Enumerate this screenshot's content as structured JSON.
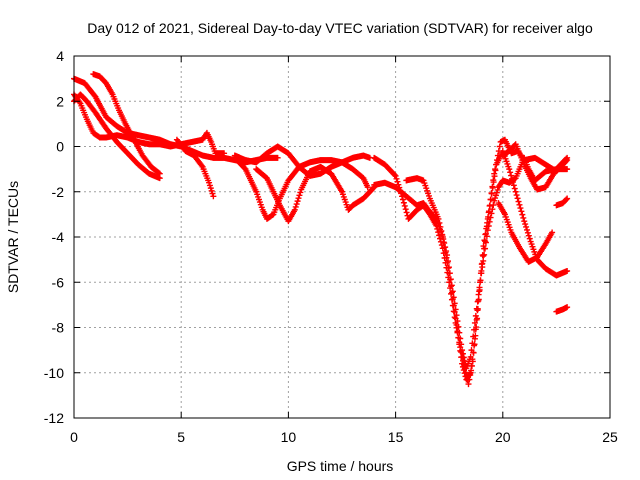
{
  "chart_data": {
    "type": "scatter",
    "title": "Day 012 of 2021, Sidereal Day-to-day VTEC variation (SDTVAR) for receiver algo",
    "xlabel": "GPS time / hours",
    "ylabel": "SDTVAR / TECUs",
    "xlim": [
      0,
      25
    ],
    "ylim": [
      -12,
      4
    ],
    "xticks": [
      0,
      5,
      10,
      15,
      20,
      25
    ],
    "yticks": [
      4,
      2,
      0,
      -2,
      -4,
      -6,
      -8,
      -10,
      -12
    ],
    "grid": true,
    "marker": "+",
    "color": "#ff0000",
    "series": [
      {
        "name": "track-1",
        "points": [
          [
            0.0,
            3.0
          ],
          [
            0.5,
            2.8
          ],
          [
            1.0,
            2.2
          ],
          [
            1.5,
            1.3
          ],
          [
            2.0,
            0.9
          ],
          [
            2.5,
            0.6
          ],
          [
            3.0,
            0.5
          ],
          [
            3.5,
            0.4
          ],
          [
            4.0,
            0.3
          ],
          [
            4.5,
            0.1
          ],
          [
            5.0,
            0.0
          ],
          [
            5.5,
            -0.2
          ],
          [
            6.0,
            -0.4
          ],
          [
            6.5,
            -0.5
          ],
          [
            7.0,
            -0.5
          ],
          [
            7.5,
            -0.6
          ],
          [
            8.0,
            -0.7
          ],
          [
            8.5,
            -0.6
          ],
          [
            9.0,
            -0.5
          ],
          [
            9.5,
            -0.5
          ]
        ]
      },
      {
        "name": "track-2",
        "points": [
          [
            0.0,
            2.3
          ],
          [
            0.3,
            1.9
          ],
          [
            0.6,
            1.2
          ],
          [
            0.9,
            0.6
          ],
          [
            1.2,
            0.4
          ],
          [
            1.5,
            0.4
          ],
          [
            2.0,
            0.5
          ],
          [
            2.5,
            0.4
          ],
          [
            3.0,
            0.2
          ],
          [
            3.5,
            0.1
          ],
          [
            4.0,
            0.1
          ],
          [
            4.5,
            0.0
          ],
          [
            5.0,
            0.1
          ],
          [
            5.5,
            0.2
          ],
          [
            6.0,
            0.3
          ],
          [
            6.2,
            0.6
          ],
          [
            6.4,
            0.2
          ],
          [
            6.6,
            -0.3
          ],
          [
            7.0,
            -0.3
          ]
        ]
      },
      {
        "name": "track-3",
        "points": [
          [
            0.0,
            2.0
          ],
          [
            0.3,
            2.3
          ],
          [
            0.6,
            2.0
          ],
          [
            1.0,
            1.5
          ],
          [
            1.5,
            0.8
          ],
          [
            2.0,
            0.2
          ],
          [
            2.5,
            -0.3
          ],
          [
            3.0,
            -0.8
          ],
          [
            3.5,
            -1.2
          ],
          [
            4.0,
            -1.4
          ]
        ]
      },
      {
        "name": "track-4",
        "points": [
          [
            0.9,
            3.2
          ],
          [
            1.2,
            3.1
          ],
          [
            1.5,
            2.8
          ],
          [
            1.8,
            2.3
          ],
          [
            2.1,
            1.6
          ],
          [
            2.4,
            1.0
          ],
          [
            2.8,
            0.3
          ],
          [
            3.2,
            -0.4
          ],
          [
            3.6,
            -0.9
          ],
          [
            4.0,
            -1.2
          ]
        ]
      },
      {
        "name": "track-5",
        "points": [
          [
            4.8,
            0.3
          ],
          [
            5.2,
            -0.2
          ],
          [
            5.6,
            -0.4
          ],
          [
            6.0,
            -0.9
          ],
          [
            6.3,
            -1.6
          ],
          [
            6.5,
            -2.2
          ]
        ]
      },
      {
        "name": "track-6",
        "points": [
          [
            7.5,
            -0.4
          ],
          [
            8.0,
            -0.6
          ],
          [
            8.5,
            -0.7
          ],
          [
            9.0,
            -0.3
          ],
          [
            9.5,
            0.0
          ],
          [
            10.0,
            -0.3
          ],
          [
            10.5,
            -0.9
          ],
          [
            11.0,
            -1.3
          ],
          [
            11.5,
            -1.2
          ],
          [
            12.0,
            -0.9
          ],
          [
            12.5,
            -0.7
          ],
          [
            13.0,
            -0.5
          ],
          [
            13.5,
            -0.4
          ],
          [
            13.8,
            -0.5
          ]
        ]
      },
      {
        "name": "track-7",
        "points": [
          [
            7.5,
            -0.5
          ],
          [
            8.0,
            -1.0
          ],
          [
            8.5,
            -2.0
          ],
          [
            8.8,
            -2.8
          ],
          [
            9.0,
            -3.2
          ],
          [
            9.3,
            -3.0
          ],
          [
            9.6,
            -2.3
          ],
          [
            10.0,
            -1.5
          ],
          [
            10.5,
            -0.9
          ],
          [
            11.0,
            -0.7
          ],
          [
            11.5,
            -0.6
          ],
          [
            12.0,
            -0.6
          ],
          [
            12.5,
            -0.7
          ],
          [
            13.0,
            -1.0
          ],
          [
            13.5,
            -1.4
          ],
          [
            13.7,
            -1.8
          ]
        ]
      },
      {
        "name": "track-8",
        "points": [
          [
            8.5,
            -1.0
          ],
          [
            9.0,
            -1.4
          ],
          [
            9.3,
            -2.0
          ],
          [
            9.6,
            -2.6
          ],
          [
            10.0,
            -3.3
          ],
          [
            10.3,
            -2.8
          ],
          [
            10.6,
            -1.9
          ],
          [
            11.0,
            -1.1
          ],
          [
            11.5,
            -0.9
          ],
          [
            12.0,
            -1.2
          ],
          [
            12.5,
            -2.0
          ],
          [
            12.8,
            -2.8
          ],
          [
            13.0,
            -2.6
          ],
          [
            13.5,
            -2.3
          ],
          [
            14.0,
            -1.8
          ]
        ]
      },
      {
        "name": "track-9",
        "points": [
          [
            14.0,
            -0.5
          ],
          [
            14.5,
            -0.8
          ],
          [
            15.0,
            -1.3
          ],
          [
            15.3,
            -2.2
          ],
          [
            15.6,
            -3.2
          ],
          [
            16.0,
            -2.8
          ],
          [
            16.3,
            -2.6
          ],
          [
            16.6,
            -3.0
          ],
          [
            16.9,
            -3.5
          ],
          [
            17.2,
            -4.5
          ],
          [
            17.5,
            -6.0
          ],
          [
            17.8,
            -7.8
          ],
          [
            18.1,
            -9.3
          ],
          [
            18.4,
            -10.5
          ],
          [
            18.6,
            -9.5
          ],
          [
            18.8,
            -7.6
          ],
          [
            19.0,
            -5.5
          ],
          [
            19.3,
            -3.2
          ],
          [
            19.6,
            -1.2
          ],
          [
            19.9,
            0.2
          ],
          [
            20.1,
            0.3
          ],
          [
            20.4,
            -0.3
          ],
          [
            20.7,
            -0.2
          ],
          [
            21.0,
            -0.6
          ],
          [
            21.5,
            -0.5
          ],
          [
            22.0,
            -0.8
          ],
          [
            22.5,
            -1.1
          ],
          [
            23.0,
            -0.6
          ]
        ]
      },
      {
        "name": "track-10",
        "points": [
          [
            14.0,
            -1.7
          ],
          [
            14.5,
            -1.6
          ],
          [
            15.0,
            -1.8
          ],
          [
            15.5,
            -2.2
          ],
          [
            16.0,
            -2.6
          ],
          [
            16.3,
            -2.5
          ],
          [
            16.6,
            -2.9
          ],
          [
            16.9,
            -3.2
          ],
          [
            17.2,
            -4.0
          ],
          [
            17.5,
            -5.6
          ],
          [
            17.8,
            -7.6
          ],
          [
            18.1,
            -9.6
          ],
          [
            18.3,
            -10.3
          ],
          [
            18.5,
            -10.0
          ],
          [
            18.7,
            -8.5
          ],
          [
            18.9,
            -6.4
          ],
          [
            19.1,
            -4.4
          ],
          [
            19.4,
            -2.6
          ],
          [
            19.7,
            -0.8
          ],
          [
            20.0,
            -0.2
          ],
          [
            20.3,
            -1.0
          ],
          [
            20.6,
            -2.0
          ],
          [
            21.0,
            -3.3
          ],
          [
            21.3,
            -4.2
          ],
          [
            21.6,
            -5.0
          ],
          [
            22.0,
            -5.4
          ],
          [
            22.5,
            -5.7
          ],
          [
            23.0,
            -5.5
          ]
        ]
      },
      {
        "name": "track-11",
        "points": [
          [
            15.5,
            -1.5
          ],
          [
            16.0,
            -1.4
          ],
          [
            16.3,
            -1.5
          ],
          [
            16.6,
            -2.3
          ],
          [
            17.0,
            -3.2
          ],
          [
            17.4,
            -4.8
          ],
          [
            17.8,
            -7.2
          ],
          [
            18.1,
            -9.0
          ],
          [
            18.3,
            -9.8
          ],
          [
            18.5,
            -9.3
          ],
          [
            18.7,
            -7.8
          ],
          [
            19.0,
            -5.6
          ],
          [
            19.3,
            -3.7
          ],
          [
            19.6,
            -2.4
          ],
          [
            19.8,
            -1.8
          ],
          [
            20.0,
            -1.5
          ],
          [
            20.3,
            -1.6
          ],
          [
            20.6,
            -1.4
          ],
          [
            21.0,
            -0.5
          ],
          [
            21.2,
            -1.0
          ],
          [
            21.5,
            -1.5
          ],
          [
            22.0,
            -1.1
          ],
          [
            22.5,
            -1.0
          ],
          [
            23.0,
            -1.0
          ]
        ]
      },
      {
        "name": "track-12",
        "points": [
          [
            20.0,
            -0.4
          ],
          [
            20.3,
            -0.2
          ],
          [
            20.6,
            0.1
          ],
          [
            21.0,
            -0.8
          ],
          [
            21.3,
            -1.4
          ],
          [
            21.6,
            -1.9
          ],
          [
            22.0,
            -1.8
          ],
          [
            22.5,
            -1.0
          ],
          [
            23.0,
            -0.5
          ]
        ]
      },
      {
        "name": "track-13",
        "points": [
          [
            19.8,
            -2.5
          ],
          [
            20.1,
            -3.0
          ],
          [
            20.4,
            -3.8
          ],
          [
            20.8,
            -4.5
          ],
          [
            21.2,
            -5.1
          ],
          [
            21.6,
            -4.9
          ],
          [
            22.0,
            -4.3
          ],
          [
            22.3,
            -3.8
          ]
        ]
      },
      {
        "name": "track-14",
        "points": [
          [
            22.5,
            -2.6
          ],
          [
            22.8,
            -2.5
          ],
          [
            23.0,
            -2.3
          ]
        ]
      },
      {
        "name": "track-15",
        "points": [
          [
            22.5,
            -7.3
          ],
          [
            22.8,
            -7.2
          ],
          [
            23.0,
            -7.1
          ]
        ]
      }
    ]
  }
}
